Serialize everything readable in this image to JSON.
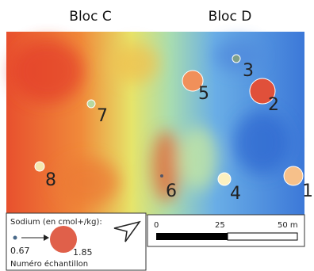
{
  "headers": [
    "Bloc C",
    "Bloc D"
  ],
  "samples": [
    "1",
    "2",
    "3",
    "4",
    "5",
    "6",
    "7",
    "8"
  ],
  "legend": {
    "title": "Sodium (en cmol+/kg):",
    "min": "0.67",
    "max": "1.85",
    "caption": "Numéro échantillon"
  },
  "scale": {
    "labels": [
      "0",
      "25",
      "50 m"
    ]
  }
}
